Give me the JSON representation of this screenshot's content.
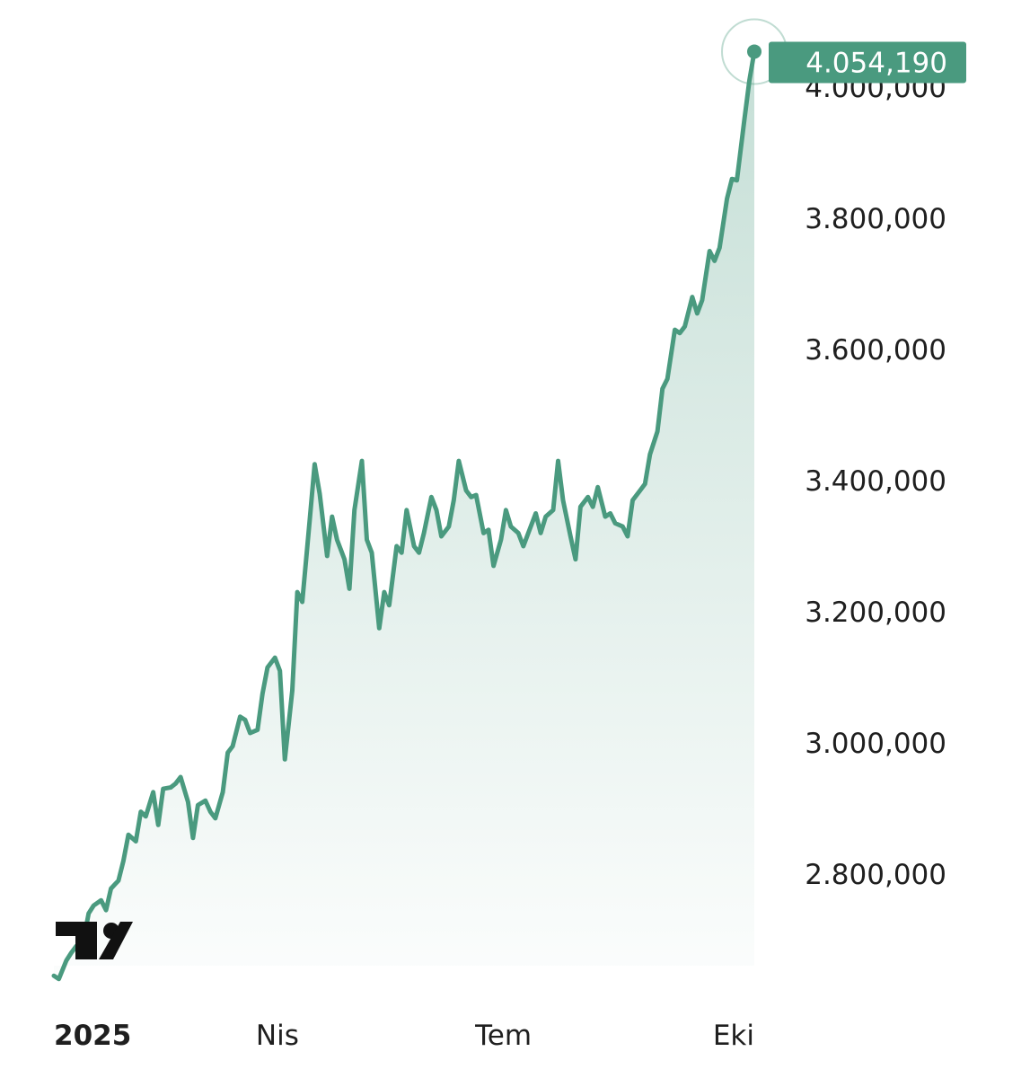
{
  "chart_data": {
    "type": "area",
    "x_tick_labels": [
      {
        "label": "2025",
        "date": "2025-01-01",
        "bold": true
      },
      {
        "label": "Nis",
        "date": "2025-04-01",
        "bold": false
      },
      {
        "label": "Tem",
        "date": "2025-07-01",
        "bold": false
      },
      {
        "label": "Eki",
        "date": "2025-10-01",
        "bold": false
      }
    ],
    "y_tick_labels": [
      "4.000,000",
      "3.800,000",
      "3.600,000",
      "3.400,000",
      "3.200,000",
      "3.000,000",
      "2.800,000"
    ],
    "y_tick_values": [
      4000000,
      3800000,
      3600000,
      3400000,
      3200000,
      3000000,
      2800000
    ],
    "ylim": [
      2640000,
      4100000
    ],
    "last_value_label": "4.054,190",
    "grid": false,
    "legend": "none",
    "colors": {
      "line": "#4a9a7f",
      "fill": "#4a9a7f",
      "label_bg": "#4a9a7f"
    },
    "logo": "tradingview-logo",
    "series": [
      {
        "values": [
          [
            "2025-01-01",
            2645000
          ],
          [
            "2025-01-03",
            2640000
          ],
          [
            "2025-01-06",
            2668000
          ],
          [
            "2025-01-08",
            2680000
          ],
          [
            "2025-01-10",
            2690000
          ],
          [
            "2025-01-13",
            2700000
          ],
          [
            "2025-01-15",
            2740000
          ],
          [
            "2025-01-17",
            2752000
          ],
          [
            "2025-01-20",
            2760000
          ],
          [
            "2025-01-22",
            2745000
          ],
          [
            "2025-01-24",
            2778000
          ],
          [
            "2025-01-27",
            2790000
          ],
          [
            "2025-01-29",
            2820000
          ],
          [
            "2025-01-31",
            2860000
          ],
          [
            "2025-02-03",
            2850000
          ],
          [
            "2025-02-05",
            2895000
          ],
          [
            "2025-02-07",
            2888000
          ],
          [
            "2025-02-10",
            2925000
          ],
          [
            "2025-02-12",
            2875000
          ],
          [
            "2025-02-14",
            2930000
          ],
          [
            "2025-02-17",
            2932000
          ],
          [
            "2025-02-19",
            2938000
          ],
          [
            "2025-02-21",
            2948000
          ],
          [
            "2025-02-24",
            2910000
          ],
          [
            "2025-02-26",
            2855000
          ],
          [
            "2025-02-28",
            2905000
          ],
          [
            "2025-03-03",
            2912000
          ],
          [
            "2025-03-05",
            2895000
          ],
          [
            "2025-03-07",
            2885000
          ],
          [
            "2025-03-10",
            2925000
          ],
          [
            "2025-03-12",
            2985000
          ],
          [
            "2025-03-14",
            2995000
          ],
          [
            "2025-03-17",
            3040000
          ],
          [
            "2025-03-19",
            3035000
          ],
          [
            "2025-03-21",
            3015000
          ],
          [
            "2025-03-24",
            3020000
          ],
          [
            "2025-03-26",
            3075000
          ],
          [
            "2025-03-28",
            3115000
          ],
          [
            "2025-03-31",
            3130000
          ],
          [
            "2025-04-02",
            3110000
          ],
          [
            "2025-04-04",
            2975000
          ],
          [
            "2025-04-07",
            3080000
          ],
          [
            "2025-04-09",
            3230000
          ],
          [
            "2025-04-11",
            3215000
          ],
          [
            "2025-04-14",
            3340000
          ],
          [
            "2025-04-16",
            3425000
          ],
          [
            "2025-04-18",
            3380000
          ],
          [
            "2025-04-21",
            3285000
          ],
          [
            "2025-04-23",
            3345000
          ],
          [
            "2025-04-25",
            3310000
          ],
          [
            "2025-04-28",
            3280000
          ],
          [
            "2025-04-30",
            3235000
          ],
          [
            "2025-05-02",
            3355000
          ],
          [
            "2025-05-05",
            3430000
          ],
          [
            "2025-05-07",
            3310000
          ],
          [
            "2025-05-09",
            3290000
          ],
          [
            "2025-05-12",
            3175000
          ],
          [
            "2025-05-14",
            3230000
          ],
          [
            "2025-05-16",
            3210000
          ],
          [
            "2025-05-19",
            3300000
          ],
          [
            "2025-05-21",
            3290000
          ],
          [
            "2025-05-23",
            3355000
          ],
          [
            "2025-05-26",
            3300000
          ],
          [
            "2025-05-28",
            3290000
          ],
          [
            "2025-05-30",
            3320000
          ],
          [
            "2025-06-02",
            3375000
          ],
          [
            "2025-06-04",
            3355000
          ],
          [
            "2025-06-06",
            3315000
          ],
          [
            "2025-06-09",
            3330000
          ],
          [
            "2025-06-11",
            3370000
          ],
          [
            "2025-06-13",
            3430000
          ],
          [
            "2025-06-16",
            3385000
          ],
          [
            "2025-06-18",
            3375000
          ],
          [
            "2025-06-20",
            3378000
          ],
          [
            "2025-06-23",
            3320000
          ],
          [
            "2025-06-25",
            3325000
          ],
          [
            "2025-06-27",
            3270000
          ],
          [
            "2025-06-30",
            3310000
          ],
          [
            "2025-07-02",
            3355000
          ],
          [
            "2025-07-04",
            3330000
          ],
          [
            "2025-07-07",
            3320000
          ],
          [
            "2025-07-09",
            3300000
          ],
          [
            "2025-07-11",
            3320000
          ],
          [
            "2025-07-14",
            3350000
          ],
          [
            "2025-07-16",
            3320000
          ],
          [
            "2025-07-18",
            3345000
          ],
          [
            "2025-07-21",
            3355000
          ],
          [
            "2025-07-23",
            3430000
          ],
          [
            "2025-07-25",
            3370000
          ],
          [
            "2025-07-28",
            3315000
          ],
          [
            "2025-07-30",
            3280000
          ],
          [
            "2025-08-01",
            3360000
          ],
          [
            "2025-08-04",
            3375000
          ],
          [
            "2025-08-06",
            3360000
          ],
          [
            "2025-08-08",
            3390000
          ],
          [
            "2025-08-11",
            3345000
          ],
          [
            "2025-08-13",
            3350000
          ],
          [
            "2025-08-15",
            3335000
          ],
          [
            "2025-08-18",
            3330000
          ],
          [
            "2025-08-20",
            3315000
          ],
          [
            "2025-08-22",
            3370000
          ],
          [
            "2025-08-25",
            3385000
          ],
          [
            "2025-08-27",
            3395000
          ],
          [
            "2025-08-29",
            3440000
          ],
          [
            "2025-09-01",
            3475000
          ],
          [
            "2025-09-03",
            3540000
          ],
          [
            "2025-09-05",
            3555000
          ],
          [
            "2025-09-08",
            3630000
          ],
          [
            "2025-09-10",
            3625000
          ],
          [
            "2025-09-12",
            3635000
          ],
          [
            "2025-09-15",
            3680000
          ],
          [
            "2025-09-17",
            3655000
          ],
          [
            "2025-09-19",
            3675000
          ],
          [
            "2025-09-22",
            3750000
          ],
          [
            "2025-09-24",
            3735000
          ],
          [
            "2025-09-26",
            3755000
          ],
          [
            "2025-09-29",
            3830000
          ],
          [
            "2025-10-01",
            3860000
          ],
          [
            "2025-10-03",
            3858000
          ],
          [
            "2025-10-06",
            3950000
          ],
          [
            "2025-10-08",
            4010000
          ],
          [
            "2025-10-10",
            4054190
          ]
        ]
      }
    ]
  }
}
